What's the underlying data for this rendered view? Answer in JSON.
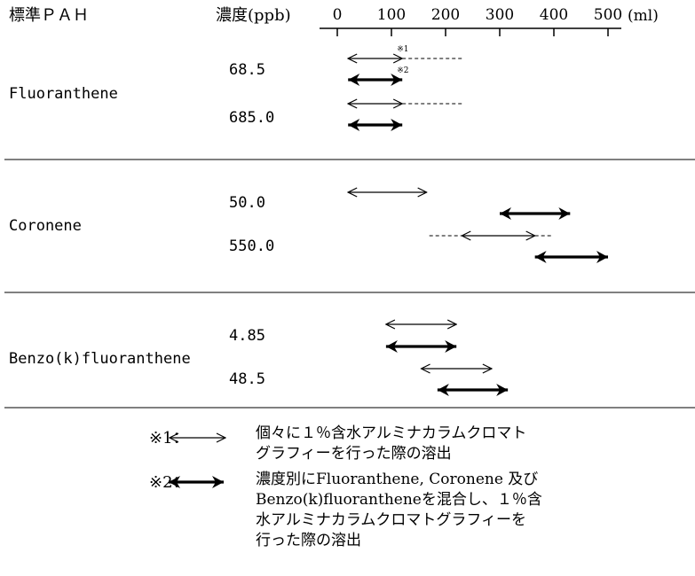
{
  "chart_data": {
    "type": "range",
    "header": {
      "compound_label": "標準ＰＡＨ",
      "conc_label": "濃度(ppb)",
      "unit_label": "(ml)"
    },
    "x_ticks": [
      0,
      100,
      200,
      300,
      400,
      500
    ],
    "xlim": [
      0,
      500
    ],
    "groups": [
      {
        "compound": "Fluoranthene",
        "rows": [
          {
            "conc": "68.5",
            "bars": [
              {
                "style": "individual",
                "from": 20,
                "to": 120,
                "note": "※1",
                "dashed_to": 230
              },
              {
                "style": "mixture",
                "from": 20,
                "to": 120,
                "note": "※2"
              }
            ]
          },
          {
            "conc": "685.0",
            "bars": [
              {
                "style": "individual",
                "from": 20,
                "to": 120,
                "dashed_to": 230
              },
              {
                "style": "mixture",
                "from": 20,
                "to": 120
              }
            ]
          }
        ]
      },
      {
        "compound": "Coronene",
        "rows": [
          {
            "conc": "50.0",
            "bars": [
              {
                "style": "individual",
                "from": 20,
                "to": 165
              },
              {
                "style": "mixture",
                "from": 300,
                "to": 430
              }
            ]
          },
          {
            "conc": "550.0",
            "bars": [
              {
                "style": "individual",
                "from": 230,
                "to": 365,
                "dashed_from": 170,
                "dashed_to": 395
              },
              {
                "style": "mixture",
                "from": 365,
                "to": 500
              }
            ]
          }
        ]
      },
      {
        "compound": "Benzo(k)fluoranthene",
        "rows": [
          {
            "conc": "4.85",
            "bars": [
              {
                "style": "individual",
                "from": 90,
                "to": 220
              },
              {
                "style": "mixture",
                "from": 90,
                "to": 220
              }
            ]
          },
          {
            "conc": "48.5",
            "bars": [
              {
                "style": "individual",
                "from": 155,
                "to": 285
              },
              {
                "style": "mixture",
                "from": 185,
                "to": 315
              }
            ]
          }
        ]
      }
    ],
    "legend": [
      {
        "key": "※1：",
        "style": "individual",
        "text": "個々に１％含水アルミナカラムクロマト\nグラフィーを行った際の溶出"
      },
      {
        "key": "※2：",
        "style": "mixture",
        "text": "濃度別にFluoranthene, Coronene 及び\nBenzo(k)fluorantheneを混合し、１％含\n水アルミナカラムクロマトグラフィーを\n行った際の溶出"
      }
    ]
  }
}
